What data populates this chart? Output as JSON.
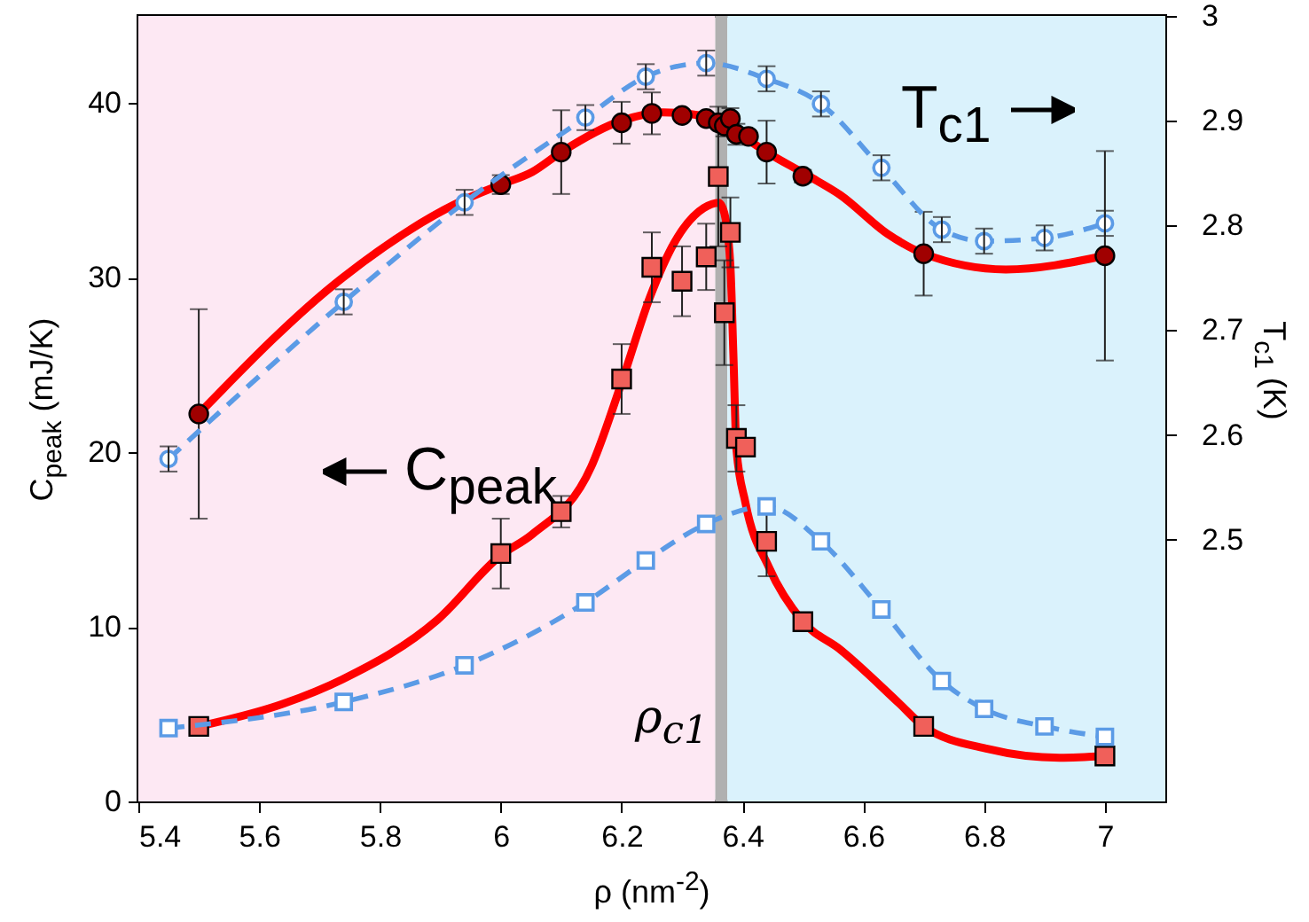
{
  "chart_data": {
    "type": "scatter",
    "xlabel": "ρ  (nm$^{-2}$)",
    "ylabel": "C$_{peak}$  (mJ/K)",
    "y2label": "T$_{c1}$ (K)",
    "annotations": [
      "T$_{c1}$",
      "C$_{peak}$"
    ],
    "xlim": [
      5.4,
      7.1
    ],
    "xticks": [
      5.4,
      5.6,
      5.8,
      6,
      6.2,
      6.4,
      6.6,
      6.8,
      7
    ],
    "ylim": [
      0,
      45
    ],
    "yticks": [
      0,
      10,
      20,
      30,
      40
    ],
    "y2lim": [
      2.25,
      3.0
    ],
    "y2ticks": [
      2.5,
      2.6,
      2.7,
      2.8,
      2.9,
      3
    ],
    "grid": false,
    "bands": [
      {
        "axis": "x",
        "from": 5.4,
        "to": 6.355,
        "color": "#fde8f3"
      },
      {
        "axis": "x",
        "from": 6.355,
        "to": 6.375,
        "color": "#b0b0b0",
        "label": "ρ$_{c1}$"
      },
      {
        "axis": "x",
        "from": 6.375,
        "to": 7.1,
        "color": "#daf2fc"
      }
    ],
    "series": [
      {
        "type": "line",
        "color": "#ff0000",
        "line_style": "solid",
        "x": [
          5.5,
          5.64,
          5.738,
          5.895,
          6.0,
          6.052,
          6.15,
          6.2,
          6.248,
          6.287,
          6.336,
          6.361,
          6.37,
          6.38,
          6.385,
          6.39,
          6.405,
          6.444,
          6.5,
          6.562,
          6.66,
          6.7,
          6.807,
          6.925,
          7.0
        ],
        "values": [
          4.3,
          5.6,
          7.0,
          10.4,
          14.1,
          15.3,
          19.2,
          24.0,
          29.0,
          32.0,
          34.0,
          34.3,
          33.7,
          30.7,
          25.6,
          20.2,
          17.1,
          13.4,
          10.3,
          8.7,
          5.6,
          4.3,
          3.0,
          2.5,
          2.6
        ]
      },
      {
        "marker": "square",
        "color": "#f0605a",
        "x": [
          5.5,
          6.0,
          6.1,
          6.2,
          6.25,
          6.3,
          6.34,
          6.36,
          6.37,
          6.38,
          6.39,
          6.405,
          6.44,
          6.5,
          6.7,
          7.0
        ],
        "values": [
          4.3,
          14.2,
          16.6,
          24.2,
          30.6,
          29.8,
          31.2,
          35.8,
          28.0,
          32.6,
          20.8,
          20.3,
          14.9,
          10.3,
          4.3,
          2.6
        ],
        "errors": [
          null,
          2.0,
          0.9,
          2.0,
          2.0,
          2.0,
          1.9,
          4.0,
          3.0,
          2.0,
          1.9,
          null,
          2.0,
          null,
          null,
          null
        ]
      },
      {
        "type": "line",
        "color": "#5b9be6",
        "line_style": "dashed",
        "marker": "square",
        "x": [
          5.45,
          5.74,
          5.94,
          6.14,
          6.24,
          6.34,
          6.44,
          6.53,
          6.63,
          6.73,
          6.8,
          6.9,
          7.0
        ],
        "values": [
          4.2,
          5.7,
          7.8,
          11.4,
          13.8,
          15.9,
          16.9,
          14.9,
          11.0,
          6.9,
          5.3,
          4.3,
          3.7
        ]
      },
      {
        "type": "line",
        "axis": "y2",
        "color": "#ff0000",
        "line_style": "solid",
        "x": [
          5.5,
          5.738,
          5.934,
          6.0,
          6.052,
          6.1,
          6.2,
          6.268,
          6.33,
          6.376,
          6.44,
          6.51,
          6.562,
          6.64,
          6.7,
          6.836,
          7.0
        ],
        "values": [
          2.62,
          2.75,
          2.823,
          2.839,
          2.851,
          2.87,
          2.9,
          2.908,
          2.905,
          2.894,
          2.87,
          2.847,
          2.829,
          2.792,
          2.773,
          2.758,
          2.771
        ]
      },
      {
        "axis": "y2",
        "marker": "circle",
        "color": "#a00000",
        "x": [
          5.5,
          6.0,
          6.1,
          6.2,
          6.25,
          6.3,
          6.34,
          6.36,
          6.37,
          6.38,
          6.39,
          6.41,
          6.44,
          6.5,
          6.7,
          7.0
        ],
        "values": [
          2.62,
          2.839,
          2.87,
          2.898,
          2.907,
          2.905,
          2.902,
          2.898,
          2.895,
          2.902,
          2.887,
          2.885,
          2.87,
          2.847,
          2.773,
          2.771
        ],
        "errors": [
          0.1,
          0.009,
          0.04,
          0.02,
          0.02,
          null,
          null,
          null,
          0.01,
          0.01,
          0.01,
          null,
          0.03,
          0.006,
          0.04,
          0.1
        ]
      },
      {
        "type": "line",
        "axis": "y2",
        "color": "#5b9be6",
        "line_style": "dashed",
        "marker": "circle",
        "x": [
          5.45,
          5.74,
          5.94,
          6.14,
          6.24,
          6.34,
          6.44,
          6.53,
          6.63,
          6.73,
          6.8,
          6.9,
          7.0
        ],
        "values": [
          2.577,
          2.727,
          2.822,
          2.903,
          2.942,
          2.955,
          2.94,
          2.916,
          2.855,
          2.796,
          2.785,
          2.788,
          2.802
        ],
        "errors": [
          0.012,
          0.012,
          0.012,
          0.012,
          0.012,
          0.012,
          0.012,
          0.012,
          0.012,
          0.012,
          0.012,
          0.012,
          0.012
        ]
      }
    ]
  }
}
